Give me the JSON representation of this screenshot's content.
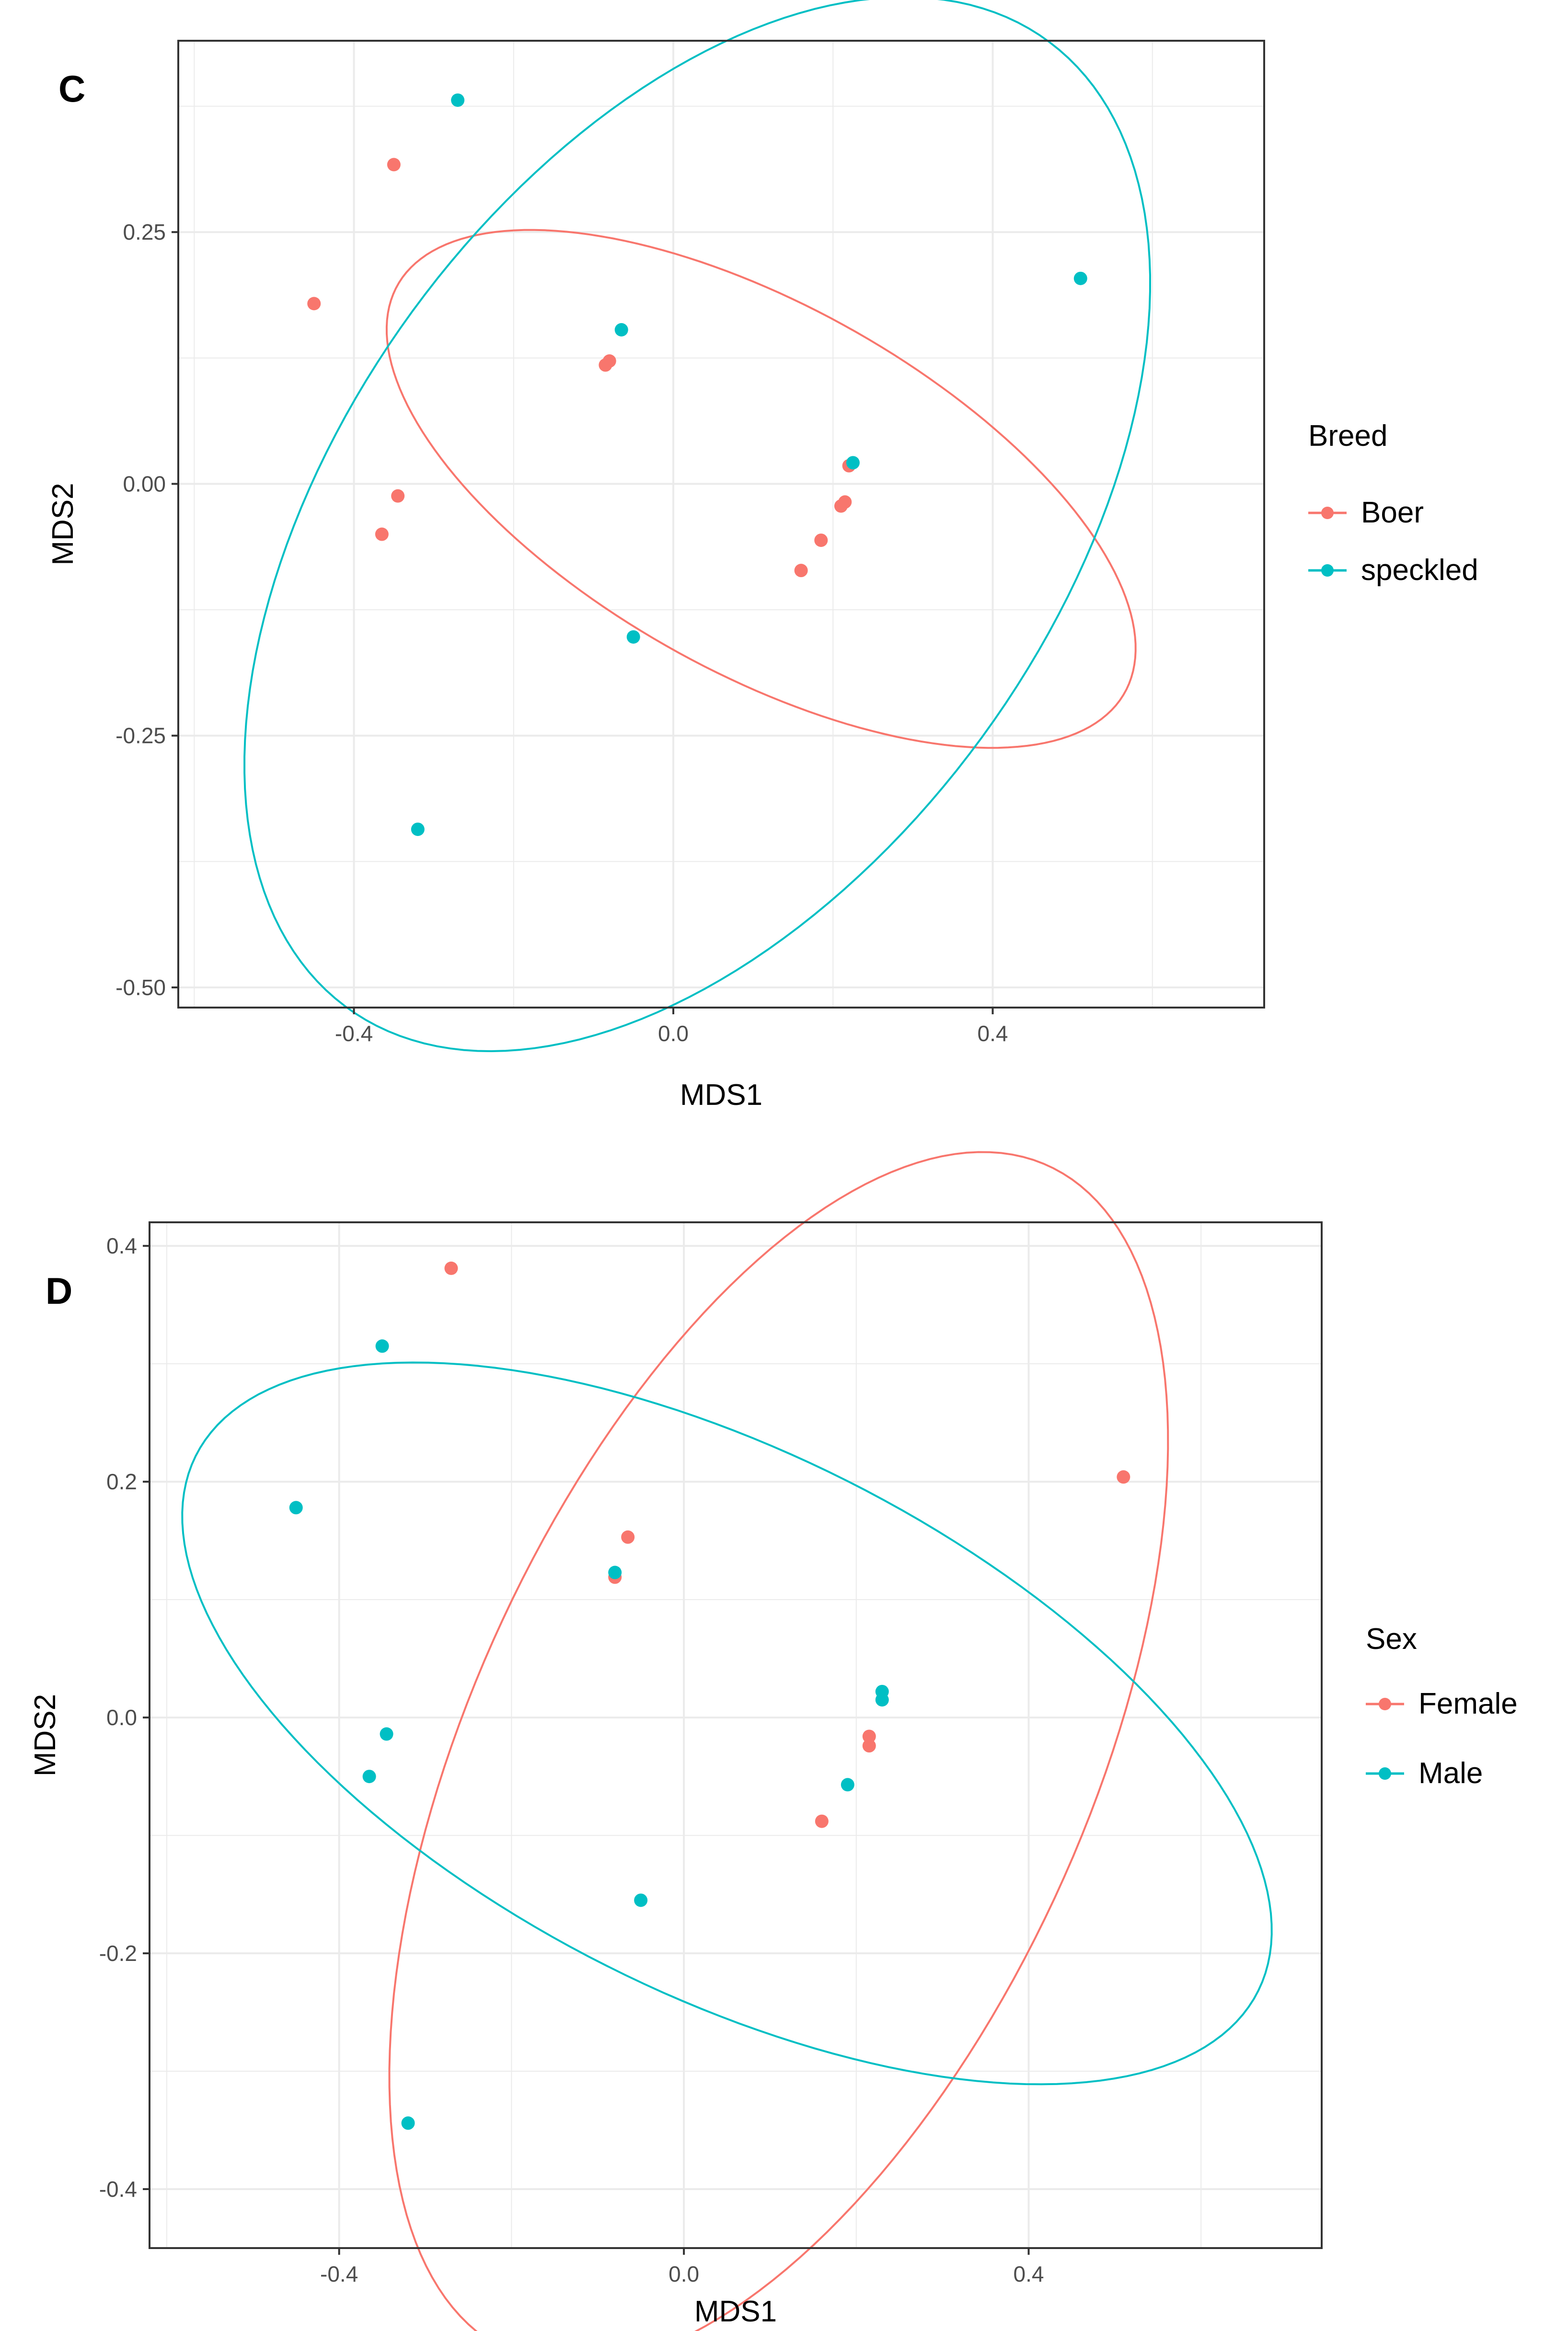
{
  "chart_data": [
    {
      "type": "scatter",
      "panel_label": "C",
      "xlabel": "MDS1",
      "ylabel": "MDS2",
      "xlim": [
        -0.62,
        0.74
      ],
      "ylim": [
        -0.52,
        0.44
      ],
      "xticks": [
        -0.4,
        0.0,
        0.4
      ],
      "xtick_labels": [
        "-0.4",
        "0.0",
        "0.4"
      ],
      "yticks": [
        -0.5,
        -0.25,
        0.0,
        0.25
      ],
      "ytick_labels": [
        "-0.50",
        "-0.25",
        "0.00",
        "0.25"
      ],
      "grid": true,
      "legend": {
        "title": "Breed",
        "position": "right",
        "entries": [
          {
            "label": "Boer",
            "color": "#F8766D"
          },
          {
            "label": "speckled",
            "color": "#00BFC4"
          }
        ]
      },
      "series": [
        {
          "name": "Boer",
          "color": "#F8766D",
          "points": [
            [
              -0.35,
              0.317
            ],
            [
              -0.45,
              0.179
            ],
            [
              -0.085,
              0.118
            ],
            [
              -0.08,
              0.122
            ],
            [
              -0.345,
              -0.012
            ],
            [
              -0.365,
              -0.05
            ],
            [
              0.22,
              0.018
            ],
            [
              0.215,
              -0.018
            ],
            [
              0.21,
              -0.022
            ],
            [
              0.185,
              -0.056
            ],
            [
              0.16,
              -0.086
            ]
          ],
          "ellipse": {
            "center": [
              0.11,
              -0.005
            ],
            "rx": 0.5,
            "ry": 0.19,
            "angle_deg": -22
          }
        },
        {
          "name": "speckled",
          "color": "#00BFC4",
          "points": [
            [
              -0.27,
              0.381
            ],
            [
              0.51,
              0.204
            ],
            [
              -0.065,
              0.153
            ],
            [
              0.225,
              0.021
            ],
            [
              -0.05,
              -0.152
            ],
            [
              -0.32,
              -0.343
            ]
          ],
          "ellipse": {
            "center": [
              0.03,
              -0.04
            ],
            "rx": 0.66,
            "ry": 0.4,
            "angle_deg": 40
          }
        }
      ]
    },
    {
      "type": "scatter",
      "panel_label": "D",
      "xlabel": "MDS1",
      "ylabel": "MDS2",
      "xlim": [
        -0.62,
        0.74
      ],
      "ylim": [
        -0.45,
        0.42
      ],
      "xticks": [
        -0.4,
        0.0,
        0.4
      ],
      "xtick_labels": [
        "-0.4",
        "0.0",
        "0.4"
      ],
      "yticks": [
        -0.4,
        -0.2,
        0.0,
        0.2,
        0.4
      ],
      "ytick_labels": [
        "-0.4",
        "-0.2",
        "0.0",
        "0.2",
        "0.4"
      ],
      "grid": true,
      "legend": {
        "title": "Sex",
        "position": "right",
        "entries": [
          {
            "label": "Female",
            "color": "#F8766D"
          },
          {
            "label": "Male",
            "color": "#00BFC4"
          }
        ]
      },
      "series": [
        {
          "name": "Female",
          "color": "#F8766D",
          "points": [
            [
              -0.27,
              0.381
            ],
            [
              0.51,
              0.204
            ],
            [
              -0.065,
              0.153
            ],
            [
              -0.08,
              0.119
            ],
            [
              0.215,
              -0.016
            ],
            [
              0.215,
              -0.024
            ],
            [
              0.16,
              -0.088
            ]
          ],
          "ellipse": {
            "center": [
              0.11,
              -0.035
            ],
            "rx": 0.6,
            "ry": 0.33,
            "angle_deg": 52
          }
        },
        {
          "name": "Male",
          "color": "#00BFC4",
          "points": [
            [
              -0.35,
              0.315
            ],
            [
              -0.45,
              0.178
            ],
            [
              -0.08,
              0.123
            ],
            [
              -0.345,
              -0.014
            ],
            [
              -0.365,
              -0.05
            ],
            [
              0.23,
              0.022
            ],
            [
              0.23,
              0.015
            ],
            [
              0.19,
              -0.057
            ],
            [
              -0.05,
              -0.155
            ],
            [
              -0.32,
              -0.344
            ]
          ],
          "ellipse": {
            "center": [
              0.05,
              -0.005
            ],
            "rx": 0.66,
            "ry": 0.24,
            "angle_deg": -18
          }
        }
      ]
    }
  ]
}
